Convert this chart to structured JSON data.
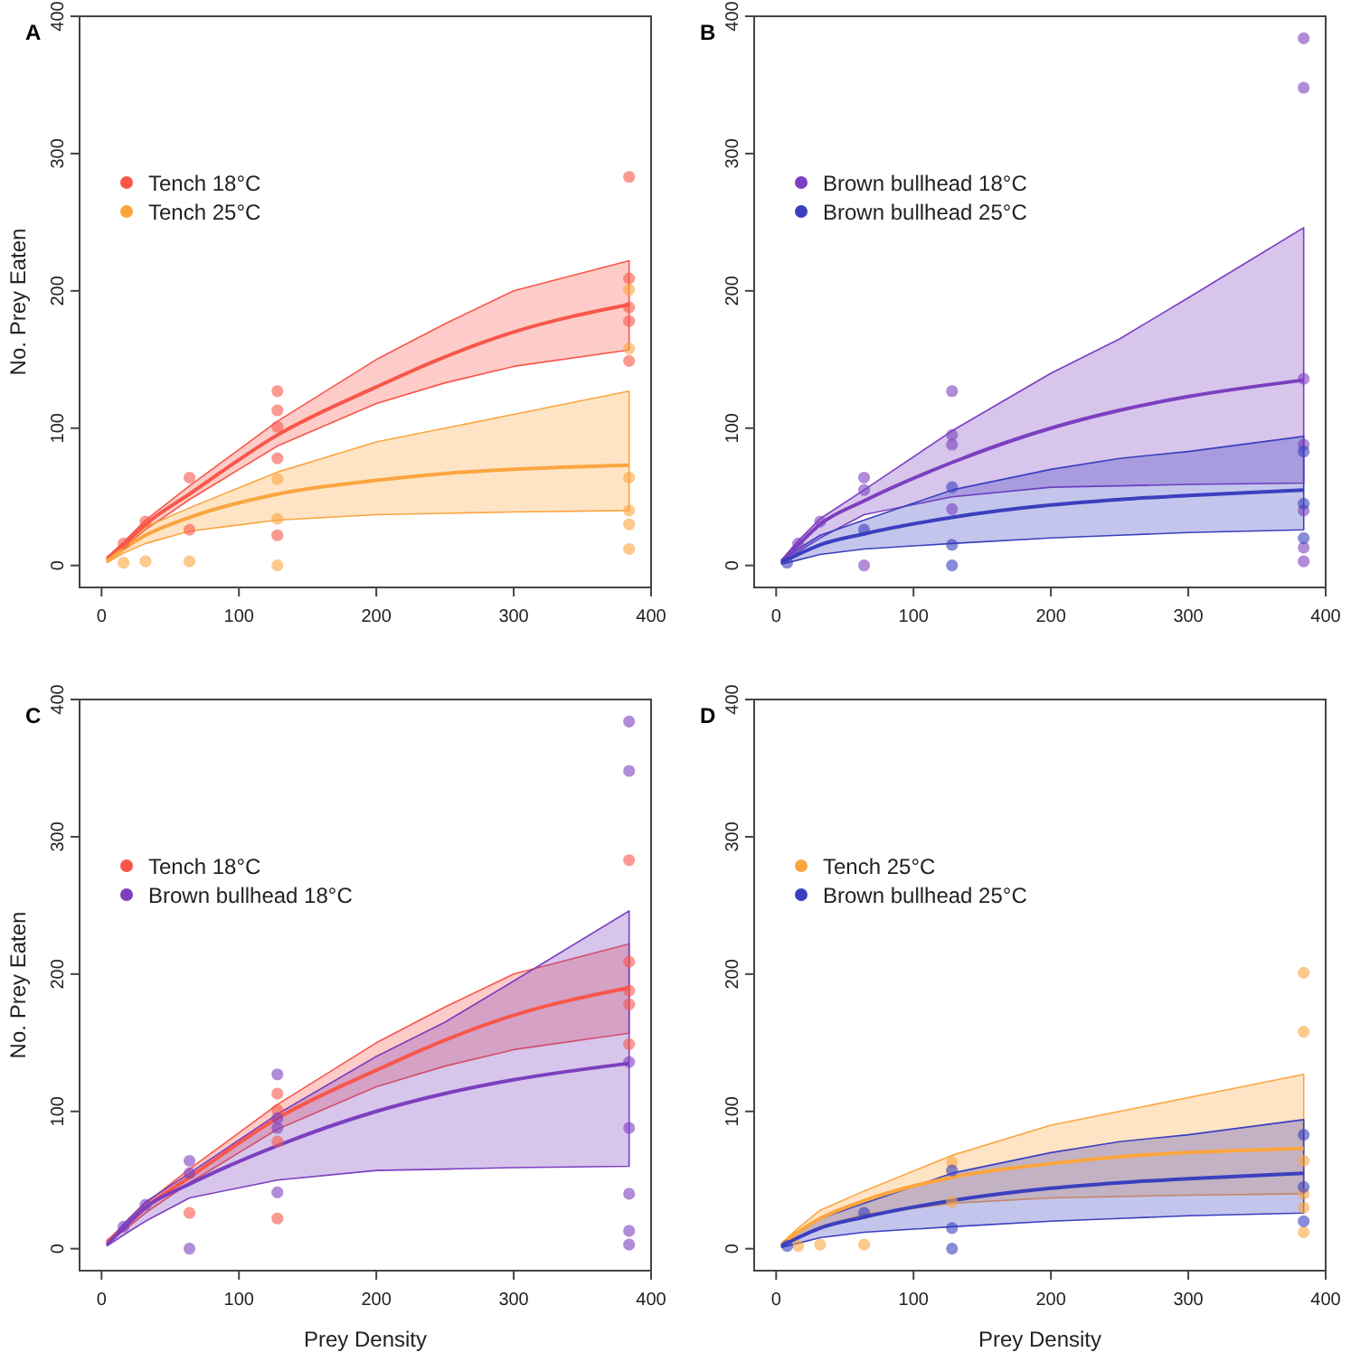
{
  "chart_data": [
    {
      "type": "line",
      "title": "A",
      "ylabel": "No. Prey Eaten",
      "xlim": [
        -16,
        400
      ],
      "ylim": [
        -16,
        400
      ],
      "xticks": [
        0,
        100,
        200,
        300,
        400
      ],
      "yticks": [
        0,
        100,
        200,
        300,
        400
      ],
      "legend": "top left",
      "series": [
        {
          "color": "#f8564a",
          "marker": "none",
          "x": [
            4,
            16,
            32,
            64,
            128,
            200,
            250,
            300,
            384
          ],
          "values": [
            5,
            15,
            30,
            52,
            95,
            130,
            152,
            170,
            190
          ],
          "lower": [
            4,
            13,
            26,
            48,
            87,
            118,
            133,
            145,
            157
          ],
          "upper": [
            6,
            17,
            33,
            58,
            105,
            150,
            176,
            200,
            222
          ]
        },
        {
          "color": "#fba53f",
          "marker": "none",
          "x": [
            4,
            16,
            32,
            64,
            128,
            200,
            250,
            300,
            384
          ],
          "values": [
            3,
            12,
            22,
            35,
            52,
            62,
            67,
            70,
            73
          ],
          "lower": [
            2,
            9,
            16,
            25,
            33,
            37,
            38,
            39,
            40
          ],
          "upper": [
            4,
            15,
            28,
            42,
            68,
            90,
            100,
            110,
            127
          ]
        },
        {
          "type": "scatter",
          "marker": "circle",
          "name": "Tench 18°C",
          "color": "#f8564a",
          "x": [
            16,
            32,
            64,
            64,
            128,
            128,
            128,
            128,
            128,
            384,
            384,
            384,
            384,
            384
          ],
          "values": [
            16,
            32,
            64,
            26,
            127,
            113,
            101,
            78,
            22,
            283,
            209,
            188,
            178,
            149
          ]
        },
        {
          "type": "scatter",
          "marker": "circle",
          "name": "Tench 25°C",
          "color": "#fba53f",
          "x": [
            16,
            32,
            64,
            128,
            128,
            128,
            384,
            384,
            384,
            384,
            384,
            384
          ],
          "values": [
            2,
            3,
            3,
            63,
            34,
            0,
            201,
            158,
            64,
            40,
            30,
            12
          ]
        }
      ]
    },
    {
      "type": "line",
      "title": "B",
      "xlim": [
        -16,
        400
      ],
      "ylim": [
        -16,
        400
      ],
      "xticks": [
        0,
        100,
        200,
        300,
        400
      ],
      "yticks": [
        0,
        100,
        200,
        300,
        400
      ],
      "legend": "top left",
      "series": [
        {
          "color": "#7b3fbf",
          "marker": "none",
          "x": [
            4,
            16,
            32,
            64,
            128,
            200,
            250,
            300,
            384
          ],
          "values": [
            3,
            15,
            30,
            47,
            75,
            100,
            113,
            123,
            135
          ],
          "lower": [
            2,
            10,
            20,
            37,
            50,
            57,
            58,
            59,
            60
          ],
          "upper": [
            4,
            18,
            34,
            55,
            98,
            140,
            165,
            195,
            246
          ]
        },
        {
          "color": "#3b3fbf",
          "marker": "none",
          "x": [
            4,
            16,
            32,
            64,
            128,
            200,
            250,
            300,
            384
          ],
          "values": [
            2,
            8,
            15,
            23,
            35,
            44,
            48,
            51,
            55
          ],
          "lower": [
            1,
            4,
            8,
            12,
            16,
            20,
            22,
            24,
            26
          ],
          "upper": [
            3,
            12,
            22,
            33,
            55,
            70,
            78,
            83,
            94
          ]
        },
        {
          "type": "scatter",
          "marker": "circle",
          "name": "Brown bullhead 18°C",
          "color": "#7b3fbf",
          "x": [
            16,
            32,
            64,
            64,
            64,
            128,
            128,
            128,
            128,
            384,
            384,
            384,
            384,
            384,
            384,
            384
          ],
          "values": [
            16,
            32,
            64,
            55,
            0,
            127,
            95,
            88,
            41,
            384,
            348,
            136,
            88,
            40,
            13,
            3
          ]
        },
        {
          "type": "scatter",
          "marker": "circle",
          "name": "Brown bullhead 25°C",
          "color": "#3b3fbf",
          "x": [
            8,
            64,
            128,
            128,
            128,
            384,
            384,
            384
          ],
          "values": [
            2,
            26,
            57,
            15,
            0,
            83,
            45,
            20
          ]
        }
      ]
    },
    {
      "type": "line",
      "title": "C",
      "xlabel": "Prey Density",
      "ylabel": "No. Prey Eaten",
      "xlim": [
        -16,
        400
      ],
      "ylim": [
        -16,
        400
      ],
      "xticks": [
        0,
        100,
        200,
        300,
        400
      ],
      "yticks": [
        0,
        100,
        200,
        300,
        400
      ],
      "legend": "top left",
      "series": [
        {
          "color": "#f8564a",
          "marker": "none",
          "x": [
            4,
            16,
            32,
            64,
            128,
            200,
            250,
            300,
            384
          ],
          "values": [
            5,
            15,
            30,
            52,
            95,
            130,
            152,
            170,
            190
          ],
          "lower": [
            4,
            13,
            26,
            48,
            87,
            118,
            133,
            145,
            157
          ],
          "upper": [
            6,
            17,
            33,
            58,
            105,
            150,
            176,
            200,
            222
          ]
        },
        {
          "color": "#7b3fbf",
          "marker": "none",
          "x": [
            4,
            16,
            32,
            64,
            128,
            200,
            250,
            300,
            384
          ],
          "values": [
            3,
            15,
            30,
            47,
            75,
            100,
            113,
            123,
            135
          ],
          "lower": [
            2,
            10,
            20,
            37,
            50,
            57,
            58,
            59,
            60
          ],
          "upper": [
            4,
            18,
            34,
            55,
            98,
            140,
            165,
            195,
            246
          ]
        },
        {
          "type": "scatter",
          "marker": "circle",
          "name": "Tench 18°C",
          "color": "#f8564a",
          "x": [
            64,
            128,
            128,
            128,
            128,
            384,
            384,
            384,
            384,
            384
          ],
          "values": [
            26,
            113,
            101,
            78,
            22,
            283,
            209,
            188,
            178,
            149
          ]
        },
        {
          "type": "scatter",
          "marker": "circle",
          "name": "Brown bullhead 18°C",
          "color": "#7b3fbf",
          "x": [
            16,
            32,
            64,
            64,
            64,
            128,
            128,
            128,
            128,
            384,
            384,
            384,
            384,
            384,
            384,
            384
          ],
          "values": [
            16,
            32,
            64,
            55,
            0,
            127,
            95,
            88,
            41,
            384,
            348,
            136,
            88,
            40,
            13,
            3
          ]
        }
      ]
    },
    {
      "type": "line",
      "title": "D",
      "xlabel": "Prey Density",
      "xlim": [
        -16,
        400
      ],
      "ylim": [
        -16,
        400
      ],
      "xticks": [
        0,
        100,
        200,
        300,
        400
      ],
      "yticks": [
        0,
        100,
        200,
        300,
        400
      ],
      "legend": "top left",
      "series": [
        {
          "color": "#fba53f",
          "marker": "none",
          "x": [
            4,
            16,
            32,
            64,
            128,
            200,
            250,
            300,
            384
          ],
          "values": [
            3,
            12,
            22,
            35,
            52,
            62,
            67,
            70,
            73
          ],
          "lower": [
            2,
            9,
            16,
            25,
            33,
            37,
            38,
            39,
            40
          ],
          "upper": [
            4,
            15,
            28,
            42,
            68,
            90,
            100,
            110,
            127
          ]
        },
        {
          "color": "#3b3fbf",
          "marker": "none",
          "x": [
            4,
            16,
            32,
            64,
            128,
            200,
            250,
            300,
            384
          ],
          "values": [
            2,
            8,
            15,
            23,
            35,
            44,
            48,
            51,
            55
          ],
          "lower": [
            1,
            4,
            8,
            12,
            16,
            20,
            22,
            24,
            26
          ],
          "upper": [
            3,
            12,
            22,
            33,
            55,
            70,
            78,
            83,
            94
          ]
        },
        {
          "type": "scatter",
          "marker": "circle",
          "name": "Tench 25°C",
          "color": "#fba53f",
          "x": [
            16,
            32,
            64,
            128,
            128,
            384,
            384,
            384,
            384,
            384,
            384
          ],
          "values": [
            2,
            3,
            3,
            63,
            34,
            201,
            158,
            64,
            40,
            30,
            12
          ]
        },
        {
          "type": "scatter",
          "marker": "circle",
          "name": "Brown bullhead 25°C",
          "color": "#3b3fbf",
          "x": [
            8,
            64,
            128,
            128,
            128,
            384,
            384,
            384
          ],
          "values": [
            2,
            26,
            57,
            15,
            0,
            83,
            45,
            20
          ]
        }
      ]
    }
  ]
}
